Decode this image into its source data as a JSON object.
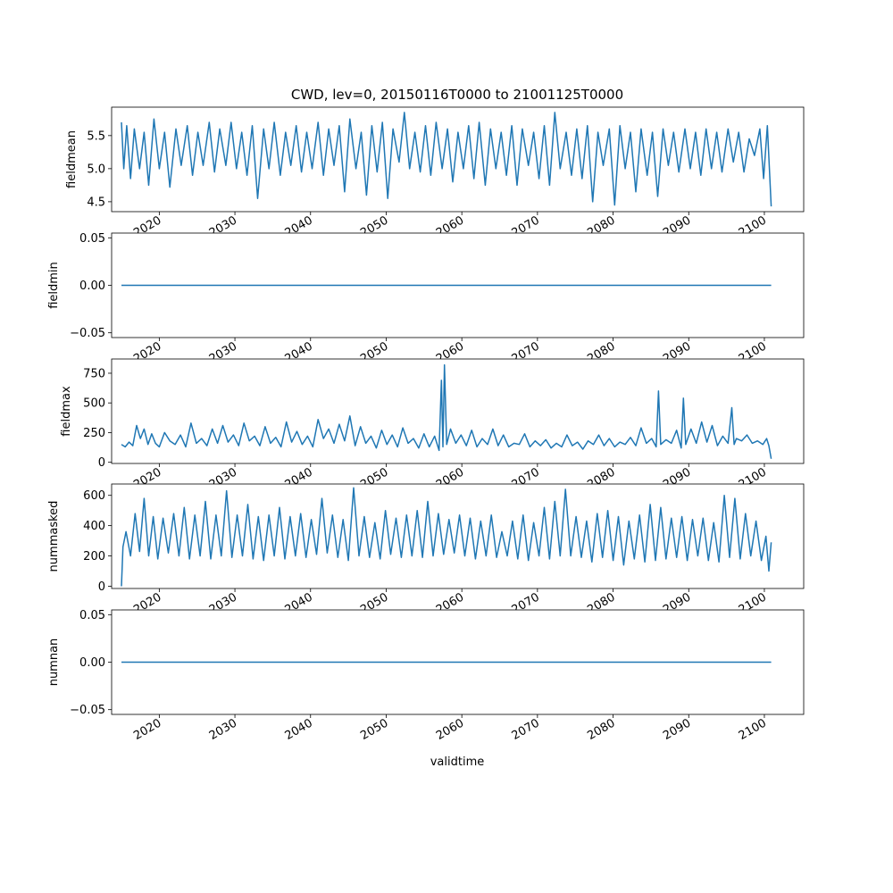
{
  "chart_data": {
    "type": "line",
    "title": "CWD, lev=0, 20150116T0000 to 21001125T0000",
    "xlabel": "validtime",
    "xlim": [
      2013.7,
      2105.2
    ],
    "x_ticks": [
      2020,
      2030,
      2040,
      2050,
      2060,
      2070,
      2080,
      2090,
      2100
    ],
    "x_tick_labels": [
      "2020",
      "2030",
      "2040",
      "2050",
      "2060",
      "2070",
      "2080",
      "2090",
      "2100"
    ],
    "x_range": [
      "2015-01-16",
      "2100-11-25"
    ],
    "line_color": "#1f77b4",
    "grid": false,
    "legend": "none",
    "panels": [
      {
        "ylabel": "fieldmean",
        "ylim": [
          4.35,
          5.93
        ],
        "y_ticks": [
          4.5,
          5.0,
          5.5
        ],
        "y_tick_labels": [
          "4.5",
          "5.0",
          "5.5"
        ],
        "series": [
          {
            "x": [
              2015.0,
              2015.3,
              2015.7,
              2016.2,
              2016.7,
              2017.4,
              2018.0,
              2018.6,
              2019.3,
              2020.0,
              2020.7,
              2021.4,
              2022.2,
              2022.9,
              2023.7,
              2024.4,
              2025.1,
              2025.8,
              2026.6,
              2027.3,
              2028.0,
              2028.8,
              2029.5,
              2030.2,
              2030.9,
              2031.6,
              2032.3,
              2033.0,
              2033.8,
              2034.5,
              2035.2,
              2036.0,
              2036.7,
              2037.4,
              2038.1,
              2038.8,
              2039.5,
              2040.2,
              2041.0,
              2041.7,
              2042.4,
              2043.1,
              2043.8,
              2044.5,
              2045.2,
              2046.0,
              2046.7,
              2047.4,
              2048.1,
              2048.8,
              2049.5,
              2050.2,
              2050.9,
              2051.7,
              2052.4,
              2053.1,
              2053.8,
              2054.5,
              2055.2,
              2055.9,
              2056.6,
              2057.4,
              2058.1,
              2058.8,
              2059.5,
              2060.2,
              2060.9,
              2061.6,
              2062.3,
              2063.1,
              2063.8,
              2064.5,
              2065.2,
              2065.9,
              2066.6,
              2067.3,
              2068.0,
              2068.8,
              2069.5,
              2070.2,
              2070.9,
              2071.6,
              2072.3,
              2073.0,
              2073.8,
              2074.5,
              2075.2,
              2075.9,
              2076.6,
              2077.3,
              2078.0,
              2078.7,
              2079.5,
              2080.2,
              2080.9,
              2081.6,
              2082.3,
              2083.0,
              2083.7,
              2084.5,
              2085.2,
              2085.9,
              2086.6,
              2087.3,
              2088.0,
              2088.7,
              2089.5,
              2090.2,
              2090.9,
              2091.6,
              2092.3,
              2093.0,
              2093.7,
              2094.4,
              2095.2,
              2095.9,
              2096.6,
              2097.3,
              2098.0,
              2098.7,
              2099.4,
              2099.9,
              2100.4,
              2100.9
            ],
            "y": [
              5.7,
              5.0,
              5.65,
              4.85,
              5.6,
              5.0,
              5.55,
              4.75,
              5.75,
              5.0,
              5.55,
              4.72,
              5.6,
              5.05,
              5.65,
              4.9,
              5.55,
              5.05,
              5.7,
              4.95,
              5.6,
              5.05,
              5.7,
              5.0,
              5.55,
              4.9,
              5.65,
              4.55,
              5.6,
              5.0,
              5.7,
              4.9,
              5.55,
              5.05,
              5.65,
              4.95,
              5.55,
              5.0,
              5.7,
              4.9,
              5.6,
              5.05,
              5.65,
              4.65,
              5.75,
              5.0,
              5.55,
              4.6,
              5.65,
              4.95,
              5.7,
              4.55,
              5.6,
              5.1,
              5.85,
              5.0,
              5.55,
              4.95,
              5.65,
              4.9,
              5.7,
              5.0,
              5.6,
              4.8,
              5.55,
              5.0,
              5.65,
              4.85,
              5.7,
              4.75,
              5.6,
              5.0,
              5.55,
              4.9,
              5.65,
              4.75,
              5.6,
              5.05,
              5.55,
              4.85,
              5.65,
              4.75,
              5.85,
              5.0,
              5.55,
              4.9,
              5.6,
              4.85,
              5.65,
              4.5,
              5.55,
              5.05,
              5.6,
              4.45,
              5.65,
              5.0,
              5.55,
              4.65,
              5.6,
              4.9,
              5.55,
              4.58,
              5.6,
              5.05,
              5.55,
              4.95,
              5.6,
              5.0,
              5.55,
              4.9,
              5.6,
              5.0,
              5.55,
              4.95,
              5.6,
              5.1,
              5.55,
              4.95,
              5.45,
              5.2,
              5.6,
              4.85,
              5.65,
              4.43
            ]
          }
        ]
      },
      {
        "ylabel": "fieldmin",
        "ylim": [
          -0.055,
          0.055
        ],
        "y_ticks": [
          -0.05,
          0.0,
          0.05
        ],
        "y_tick_labels": [
          "−0.05",
          "0.00",
          "0.05"
        ],
        "series": [
          {
            "x": [
              2015.0,
              2100.9
            ],
            "y": [
              0.0,
              0.0
            ]
          }
        ]
      },
      {
        "ylabel": "fieldmax",
        "ylim": [
          -10,
          870
        ],
        "y_ticks": [
          0,
          250,
          500,
          750
        ],
        "y_tick_labels": [
          "0",
          "250",
          "500",
          "750"
        ],
        "series": [
          {
            "x": [
              2015.0,
              2015.5,
              2016.0,
              2016.5,
              2017.0,
              2017.5,
              2018.0,
              2018.5,
              2019.0,
              2019.5,
              2020.0,
              2020.7,
              2021.4,
              2022.1,
              2022.8,
              2023.5,
              2024.2,
              2024.9,
              2025.6,
              2026.3,
              2027.0,
              2027.7,
              2028.4,
              2029.1,
              2029.8,
              2030.5,
              2031.2,
              2031.9,
              2032.6,
              2033.3,
              2034.0,
              2034.7,
              2035.4,
              2036.1,
              2036.8,
              2037.5,
              2038.2,
              2038.9,
              2039.6,
              2040.3,
              2041.0,
              2041.7,
              2042.4,
              2043.1,
              2043.8,
              2044.5,
              2045.2,
              2045.9,
              2046.6,
              2047.3,
              2048.0,
              2048.7,
              2049.4,
              2050.1,
              2050.8,
              2051.5,
              2052.2,
              2052.9,
              2053.6,
              2054.3,
              2055.0,
              2055.7,
              2056.4,
              2057.0,
              2057.3,
              2057.5,
              2057.7,
              2058.0,
              2058.5,
              2059.2,
              2059.9,
              2060.6,
              2061.3,
              2062.0,
              2062.7,
              2063.4,
              2064.1,
              2064.8,
              2065.5,
              2066.2,
              2066.9,
              2067.6,
              2068.3,
              2069.0,
              2069.7,
              2070.4,
              2071.1,
              2071.8,
              2072.5,
              2073.2,
              2073.9,
              2074.6,
              2075.3,
              2076.0,
              2076.7,
              2077.4,
              2078.1,
              2078.8,
              2079.5,
              2080.2,
              2080.9,
              2081.6,
              2082.3,
              2083.0,
              2083.7,
              2084.4,
              2085.1,
              2085.7,
              2086.0,
              2086.3,
              2087.0,
              2087.7,
              2088.4,
              2089.0,
              2089.3,
              2089.6,
              2090.3,
              2091.0,
              2091.7,
              2092.4,
              2093.1,
              2093.8,
              2094.5,
              2095.2,
              2095.7,
              2096.0,
              2096.3,
              2097.0,
              2097.7,
              2098.4,
              2099.1,
              2099.8,
              2100.3,
              2100.6,
              2100.9
            ],
            "y": [
              150,
              130,
              170,
              140,
              310,
              200,
              280,
              150,
              240,
              160,
              130,
              250,
              180,
              150,
              230,
              130,
              330,
              160,
              200,
              140,
              280,
              160,
              310,
              170,
              230,
              140,
              330,
              180,
              220,
              140,
              300,
              160,
              210,
              130,
              340,
              170,
              260,
              150,
              220,
              130,
              360,
              200,
              280,
              160,
              320,
              180,
              390,
              140,
              300,
              160,
              220,
              120,
              270,
              150,
              230,
              130,
              290,
              160,
              200,
              120,
              240,
              130,
              220,
              100,
              690,
              130,
              820,
              150,
              280,
              160,
              230,
              140,
              270,
              130,
              200,
              150,
              280,
              140,
              230,
              130,
              160,
              150,
              240,
              130,
              180,
              140,
              190,
              120,
              160,
              130,
              230,
              140,
              170,
              110,
              180,
              150,
              230,
              140,
              200,
              130,
              170,
              150,
              210,
              140,
              290,
              160,
              200,
              130,
              600,
              150,
              190,
              160,
              270,
              120,
              540,
              150,
              280,
              160,
              340,
              170,
              310,
              140,
              220,
              160,
              460,
              150,
              200,
              180,
              230,
              160,
              180,
              150,
              200,
              140,
              30
            ]
          }
        ]
      },
      {
        "ylabel": "nummasked",
        "ylim": [
          -15,
          675
        ],
        "y_ticks": [
          0,
          200,
          400,
          600
        ],
        "y_tick_labels": [
          "0",
          "200",
          "400",
          "600"
        ],
        "series": [
          {
            "x": [
              2015.0,
              2015.2,
              2015.6,
              2016.2,
              2016.8,
              2017.4,
              2018.0,
              2018.6,
              2019.2,
              2019.8,
              2020.5,
              2021.2,
              2021.9,
              2022.6,
              2023.3,
              2024.0,
              2024.7,
              2025.4,
              2026.1,
              2026.8,
              2027.5,
              2028.2,
              2028.9,
              2029.6,
              2030.3,
              2031.0,
              2031.7,
              2032.4,
              2033.1,
              2033.8,
              2034.5,
              2035.2,
              2035.9,
              2036.6,
              2037.3,
              2038.0,
              2038.7,
              2039.4,
              2040.1,
              2040.8,
              2041.5,
              2042.2,
              2042.9,
              2043.6,
              2044.3,
              2045.0,
              2045.7,
              2046.4,
              2047.1,
              2047.8,
              2048.5,
              2049.2,
              2049.9,
              2050.6,
              2051.3,
              2052.0,
              2052.7,
              2053.4,
              2054.1,
              2054.8,
              2055.5,
              2056.2,
              2056.9,
              2057.6,
              2058.3,
              2059.0,
              2059.7,
              2060.4,
              2061.1,
              2061.8,
              2062.5,
              2063.2,
              2063.9,
              2064.6,
              2065.3,
              2066.0,
              2066.7,
              2067.4,
              2068.1,
              2068.8,
              2069.5,
              2070.2,
              2070.9,
              2071.6,
              2072.3,
              2073.0,
              2073.7,
              2074.4,
              2075.1,
              2075.8,
              2076.5,
              2077.2,
              2077.9,
              2078.6,
              2079.3,
              2080.0,
              2080.7,
              2081.4,
              2082.1,
              2082.8,
              2083.5,
              2084.2,
              2084.9,
              2085.6,
              2086.3,
              2087.0,
              2087.7,
              2088.4,
              2089.1,
              2089.8,
              2090.5,
              2091.2,
              2091.9,
              2092.6,
              2093.3,
              2094.0,
              2094.7,
              2095.4,
              2096.1,
              2096.8,
              2097.5,
              2098.2,
              2098.9,
              2099.6,
              2100.2,
              2100.6,
              2100.9
            ],
            "y": [
              0,
              260,
              360,
              200,
              480,
              230,
              580,
              200,
              460,
              180,
              450,
              220,
              480,
              200,
              520,
              180,
              470,
              200,
              560,
              180,
              470,
              200,
              630,
              190,
              470,
              200,
              540,
              180,
              460,
              170,
              470,
              200,
              520,
              180,
              460,
              200,
              480,
              190,
              440,
              210,
              580,
              220,
              470,
              190,
              440,
              170,
              650,
              200,
              460,
              190,
              420,
              180,
              500,
              210,
              450,
              190,
              470,
              200,
              500,
              190,
              560,
              200,
              480,
              210,
              440,
              220,
              470,
              200,
              450,
              180,
              430,
              200,
              470,
              190,
              360,
              200,
              430,
              180,
              470,
              170,
              420,
              200,
              520,
              180,
              560,
              200,
              640,
              200,
              460,
              190,
              430,
              160,
              480,
              190,
              500,
              170,
              460,
              140,
              430,
              180,
              470,
              160,
              540,
              170,
              520,
              180,
              450,
              190,
              460,
              170,
              440,
              200,
              450,
              170,
              420,
              160,
              600,
              190,
              580,
              180,
              480,
              200,
              430,
              170,
              330,
              100,
              290
            ]
          }
        ]
      },
      {
        "ylabel": "numnan",
        "ylim": [
          -0.055,
          0.055
        ],
        "y_ticks": [
          -0.05,
          0.0,
          0.05
        ],
        "y_tick_labels": [
          "−0.05",
          "0.00",
          "0.05"
        ],
        "series": [
          {
            "x": [
              2015.0,
              2100.9
            ],
            "y": [
              0.0,
              0.0
            ]
          }
        ]
      }
    ]
  }
}
